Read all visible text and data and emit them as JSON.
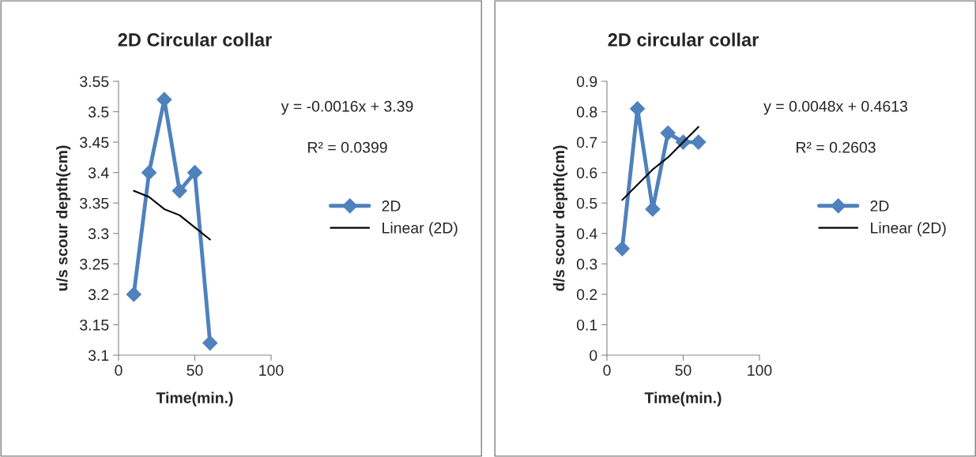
{
  "chart_data": [
    {
      "type": "line",
      "title": "2D Circular collar",
      "xlabel": "Time(min.)",
      "ylabel": "u/s scour depth(cm)",
      "x": [
        10,
        20,
        30,
        40,
        50,
        60
      ],
      "series": [
        {
          "name": "2D",
          "color": "#4f81bd",
          "marker": "diamond",
          "values": [
            3.2,
            3.4,
            3.52,
            3.37,
            3.4,
            3.12
          ]
        },
        {
          "name": "Linear (2D)",
          "color": "#000000",
          "marker": "none",
          "values": [
            3.37,
            3.36,
            3.34,
            3.33,
            3.31,
            3.29
          ]
        }
      ],
      "xlim": [
        0,
        100
      ],
      "xticks": [
        0,
        50,
        100
      ],
      "ylim": [
        3.1,
        3.55
      ],
      "yticks": [
        3.1,
        3.15,
        3.2,
        3.25,
        3.3,
        3.35,
        3.4,
        3.45,
        3.5,
        3.55
      ],
      "annotations": [
        "y = -0.0016x + 3.39",
        "R² = 0.0399"
      ],
      "legend": "right",
      "grid": false,
      "line_style": "solid"
    },
    {
      "type": "line",
      "title": "2D circular collar",
      "xlabel": "Time(min.)",
      "ylabel": "d/s scour depth(cm)",
      "x": [
        10,
        20,
        30,
        40,
        50,
        60
      ],
      "series": [
        {
          "name": "2D",
          "color": "#4f81bd",
          "marker": "diamond",
          "values": [
            0.35,
            0.81,
            0.48,
            0.73,
            0.7,
            0.7
          ]
        },
        {
          "name": "Linear (2D)",
          "color": "#000000",
          "marker": "none",
          "values": [
            0.51,
            0.56,
            0.61,
            0.65,
            0.7,
            0.75
          ]
        }
      ],
      "xlim": [
        0,
        100
      ],
      "xticks": [
        0,
        50,
        100
      ],
      "ylim": [
        0,
        0.9
      ],
      "yticks": [
        0,
        0.1,
        0.2,
        0.3,
        0.4,
        0.5,
        0.6,
        0.7,
        0.8,
        0.9
      ],
      "annotations": [
        "y = 0.0048x + 0.4613",
        "R² = 0.2603"
      ],
      "legend": "right",
      "grid": false,
      "line_style": "solid"
    }
  ]
}
